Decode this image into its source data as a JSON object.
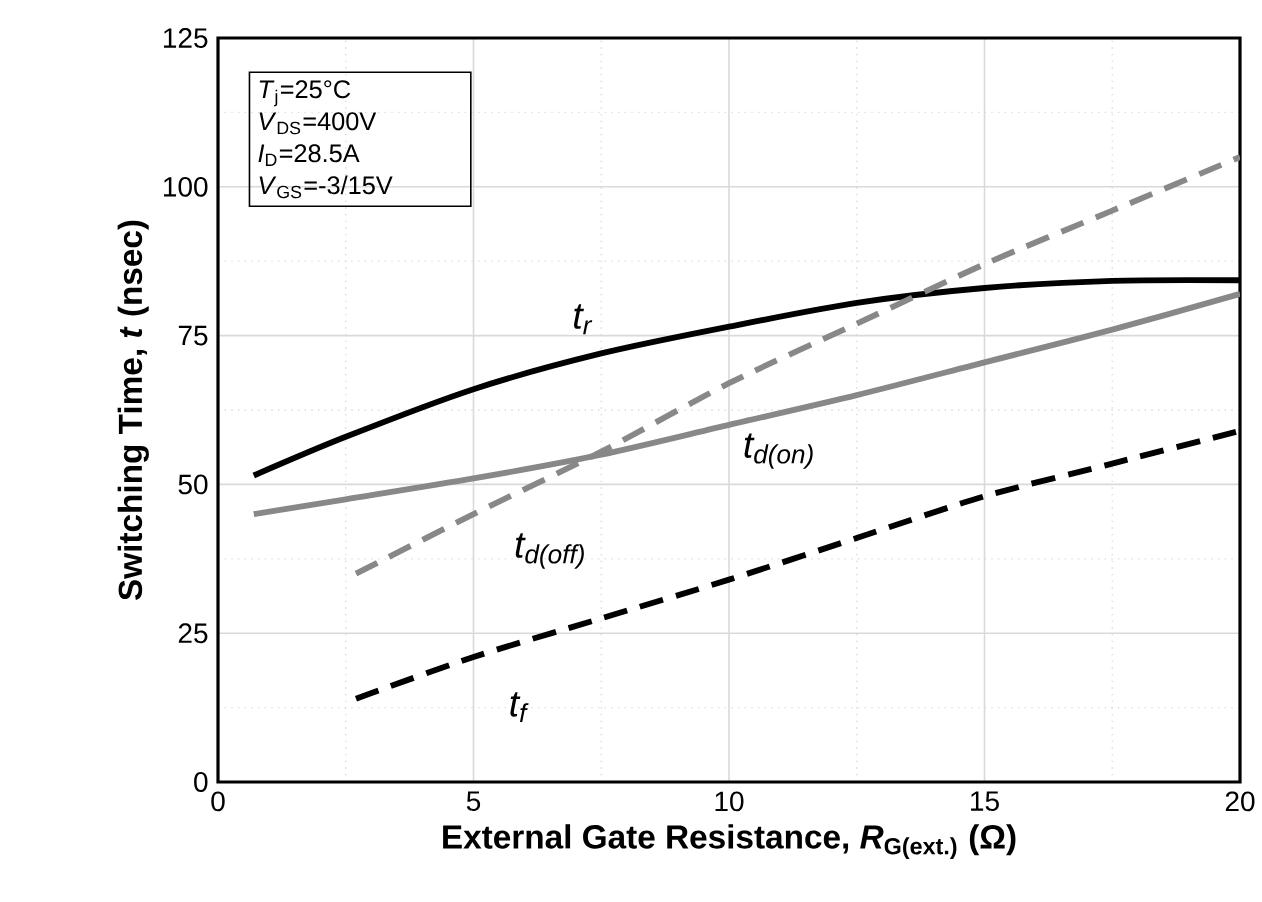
{
  "chart_data": {
    "type": "line",
    "xlabel": "External Gate Resistance, *R*$_{G(ext.)}$ (Ω)",
    "ylabel": "Switching Time, *t* (nsec)",
    "xlim": [
      0,
      20
    ],
    "xticks": [
      0,
      5,
      10,
      15,
      20
    ],
    "ylim": [
      0,
      125
    ],
    "yticks": [
      0,
      25,
      50,
      75,
      100,
      125
    ],
    "grid": true,
    "marker": "none",
    "annotations": [
      "*T*$_{j}$=25°C",
      "*V*$_{DS}$=400V",
      "*I*$_{D}$=28.5A",
      "*V*$_{GS}$=-3/15V"
    ],
    "series": [
      {
        "name": "t$_{r}$",
        "color": "#000000",
        "line_style": "solid",
        "x": [
          0.7,
          2.5,
          5,
          7.5,
          10,
          12.5,
          15,
          17.5,
          20
        ],
        "values": [
          51.5,
          58,
          66,
          72,
          76.5,
          80.5,
          83,
          84.2,
          84.3
        ]
      },
      {
        "name": "t$_{d(on)}$",
        "color": "#888888",
        "line_style": "solid",
        "x": [
          0.7,
          2.5,
          5,
          7.5,
          10,
          12.5,
          15,
          17.5,
          20
        ],
        "values": [
          45,
          47.5,
          51,
          55,
          60,
          65,
          70.5,
          76,
          82
        ]
      },
      {
        "name": "t$_{d(off)}$",
        "color": "#888888",
        "line_style": "dashed",
        "x": [
          2.7,
          5,
          7.5,
          10,
          12.5,
          15,
          17.5,
          20
        ],
        "values": [
          35,
          45,
          55.5,
          67,
          77,
          87,
          96,
          105
        ]
      },
      {
        "name": "t$_{f}$",
        "color": "#000000",
        "line_style": "dashed",
        "x": [
          2.7,
          5,
          7.5,
          10,
          12.5,
          15,
          17.5,
          20
        ],
        "values": [
          14,
          21,
          27.5,
          34,
          41,
          48,
          53.5,
          59
        ]
      }
    ]
  }
}
